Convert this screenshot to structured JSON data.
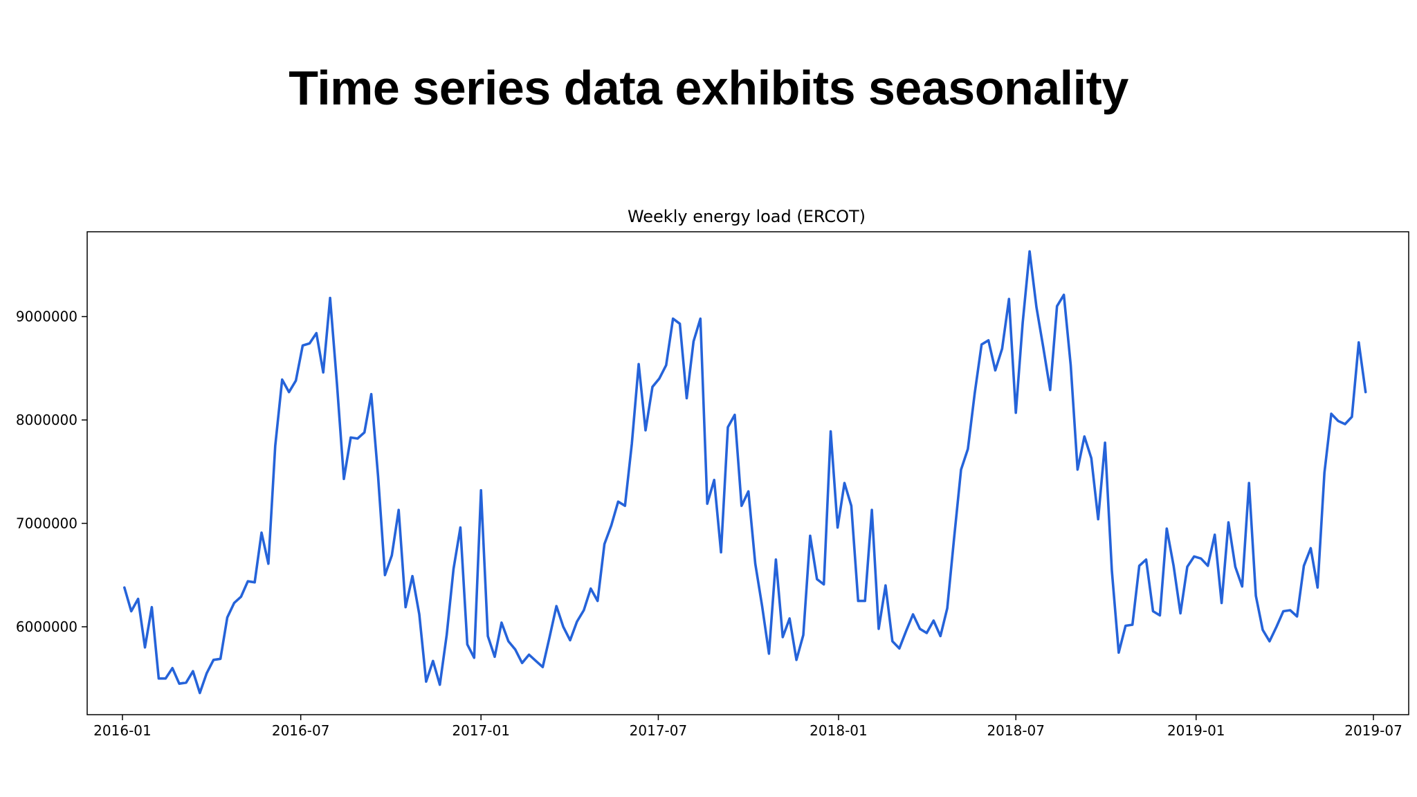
{
  "slide": {
    "title": "Time series data exhibits seasonality"
  },
  "chart_data": {
    "type": "line",
    "title": "Weekly energy load (ERCOT)",
    "xlabel": "",
    "ylabel": "",
    "x_ticks": [
      "2016-01",
      "2016-07",
      "2017-01",
      "2017-07",
      "2018-01",
      "2018-07",
      "2019-01",
      "2019-07"
    ],
    "y_ticks": [
      6000000,
      7000000,
      8000000,
      9000000
    ],
    "xlim": [
      "2015-11-26",
      "2019-08-06"
    ],
    "ylim": [
      5150000,
      9820000
    ],
    "grid": false,
    "legend": "none",
    "colors": {
      "line": "#2563d9",
      "axis": "#000000"
    },
    "series": [
      {
        "x": [
          "2016-01-03",
          "2016-01-10",
          "2016-01-17",
          "2016-01-24",
          "2016-01-31",
          "2016-02-07",
          "2016-02-14",
          "2016-02-21",
          "2016-02-28",
          "2016-03-06",
          "2016-03-13",
          "2016-03-20",
          "2016-03-27",
          "2016-04-03",
          "2016-04-10",
          "2016-04-17",
          "2016-04-24",
          "2016-05-01",
          "2016-05-08",
          "2016-05-15",
          "2016-05-22",
          "2016-05-29",
          "2016-06-05",
          "2016-06-12",
          "2016-06-19",
          "2016-06-26",
          "2016-07-03",
          "2016-07-10",
          "2016-07-17",
          "2016-07-24",
          "2016-07-31",
          "2016-08-07",
          "2016-08-14",
          "2016-08-21",
          "2016-08-28",
          "2016-09-04",
          "2016-09-11",
          "2016-09-18",
          "2016-09-25",
          "2016-10-02",
          "2016-10-09",
          "2016-10-16",
          "2016-10-23",
          "2016-10-30",
          "2016-11-06",
          "2016-11-13",
          "2016-11-20",
          "2016-11-27",
          "2016-12-04",
          "2016-12-11",
          "2016-12-18",
          "2016-12-25",
          "2017-01-01",
          "2017-01-08",
          "2017-01-15",
          "2017-01-22",
          "2017-01-29",
          "2017-02-05",
          "2017-02-12",
          "2017-02-19",
          "2017-02-26",
          "2017-03-05",
          "2017-03-12",
          "2017-03-19",
          "2017-03-26",
          "2017-04-02",
          "2017-04-09",
          "2017-04-16",
          "2017-04-23",
          "2017-04-30",
          "2017-05-07",
          "2017-05-14",
          "2017-05-21",
          "2017-05-28",
          "2017-06-04",
          "2017-06-11",
          "2017-06-18",
          "2017-06-25",
          "2017-07-02",
          "2017-07-09",
          "2017-07-16",
          "2017-07-23",
          "2017-07-30",
          "2017-08-06",
          "2017-08-13",
          "2017-08-20",
          "2017-08-27",
          "2017-09-03",
          "2017-09-10",
          "2017-09-17",
          "2017-09-24",
          "2017-10-01",
          "2017-10-08",
          "2017-10-15",
          "2017-10-22",
          "2017-10-29",
          "2017-11-05",
          "2017-11-12",
          "2017-11-19",
          "2017-11-26",
          "2017-12-03",
          "2017-12-10",
          "2017-12-17",
          "2017-12-24",
          "2017-12-31",
          "2018-01-07",
          "2018-01-14",
          "2018-01-21",
          "2018-01-28",
          "2018-02-04",
          "2018-02-11",
          "2018-02-18",
          "2018-02-25",
          "2018-03-04",
          "2018-03-11",
          "2018-03-18",
          "2018-03-25",
          "2018-04-01",
          "2018-04-08",
          "2018-04-15",
          "2018-04-22",
          "2018-04-29",
          "2018-05-06",
          "2018-05-13",
          "2018-05-20",
          "2018-05-27",
          "2018-06-03",
          "2018-06-10",
          "2018-06-17",
          "2018-06-24",
          "2018-07-01",
          "2018-07-08",
          "2018-07-15",
          "2018-07-22",
          "2018-07-29",
          "2018-08-05",
          "2018-08-12",
          "2018-08-19",
          "2018-08-26",
          "2018-09-02",
          "2018-09-09",
          "2018-09-16",
          "2018-09-23",
          "2018-09-30",
          "2018-10-07",
          "2018-10-14",
          "2018-10-21",
          "2018-10-28",
          "2018-11-04",
          "2018-11-11",
          "2018-11-18",
          "2018-11-25",
          "2018-12-02",
          "2018-12-09",
          "2018-12-16",
          "2018-12-23",
          "2018-12-30",
          "2019-01-06",
          "2019-01-13",
          "2019-01-20",
          "2019-01-27",
          "2019-02-03",
          "2019-02-10",
          "2019-02-17",
          "2019-02-24",
          "2019-03-03",
          "2019-03-10",
          "2019-03-17",
          "2019-03-24",
          "2019-03-31",
          "2019-04-07",
          "2019-04-14",
          "2019-04-21",
          "2019-04-28",
          "2019-05-05",
          "2019-05-12",
          "2019-05-19",
          "2019-05-26",
          "2019-06-02",
          "2019-06-09",
          "2019-06-16",
          "2019-06-23"
        ],
        "values": [
          6380000,
          6150000,
          6270000,
          5800000,
          6190000,
          5500000,
          5500000,
          5600000,
          5450000,
          5460000,
          5570000,
          5360000,
          5550000,
          5680000,
          5690000,
          6090000,
          6230000,
          6290000,
          6440000,
          6430000,
          6910000,
          6610000,
          7750000,
          8390000,
          8270000,
          8380000,
          8720000,
          8740000,
          8840000,
          8460000,
          9180000,
          8350000,
          7430000,
          7830000,
          7820000,
          7880000,
          8250000,
          7450000,
          6500000,
          6690000,
          7130000,
          6190000,
          6490000,
          6120000,
          5470000,
          5670000,
          5440000,
          5920000,
          6560000,
          6960000,
          5830000,
          5700000,
          7320000,
          5910000,
          5710000,
          6040000,
          5860000,
          5780000,
          5650000,
          5730000,
          5670000,
          5610000,
          5900000,
          6200000,
          6000000,
          5870000,
          6050000,
          6160000,
          6370000,
          6250000,
          6800000,
          6980000,
          7210000,
          7170000,
          7770000,
          8540000,
          7900000,
          8320000,
          8400000,
          8530000,
          8980000,
          8930000,
          8210000,
          8760000,
          8980000,
          7190000,
          7420000,
          6720000,
          7930000,
          8050000,
          7170000,
          7310000,
          6610000,
          6200000,
          5740000,
          6650000,
          5900000,
          6080000,
          5680000,
          5920000,
          6880000,
          6460000,
          6410000,
          7890000,
          6960000,
          7390000,
          7170000,
          6250000,
          6250000,
          7130000,
          5980000,
          6400000,
          5860000,
          5790000,
          5960000,
          6120000,
          5980000,
          5940000,
          6060000,
          5910000,
          6180000,
          6860000,
          7520000,
          7720000,
          8260000,
          8730000,
          8770000,
          8480000,
          8690000,
          9170000,
          8070000,
          8940000,
          9630000,
          9090000,
          8700000,
          8290000,
          9100000,
          9210000,
          8530000,
          7520000,
          7840000,
          7630000,
          7040000,
          7780000,
          6540000,
          5750000,
          6010000,
          6020000,
          6590000,
          6650000,
          6150000,
          6110000,
          6950000,
          6590000,
          6130000,
          6580000,
          6680000,
          6660000,
          6590000,
          6890000,
          6230000,
          7010000,
          6580000,
          6390000,
          7390000,
          6300000,
          5970000,
          5860000,
          6000000,
          6150000,
          6160000,
          6100000,
          6590000,
          6760000,
          6380000,
          7490000,
          8060000,
          7990000,
          7960000,
          8030000,
          8750000,
          8270000
        ]
      }
    ]
  }
}
